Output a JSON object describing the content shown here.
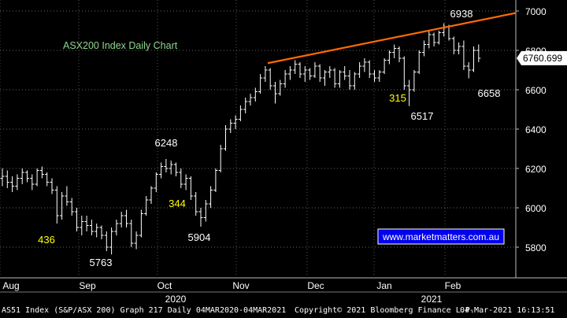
{
  "chart_data": {
    "type": "ohlc",
    "title": "ASX200 Index Daily Chart",
    "y_ticks": [
      5800,
      6000,
      6200,
      6400,
      6600,
      6800,
      7000
    ],
    "ylim": [
      5660,
      7050
    ],
    "x_month_labels": [
      "Aug",
      "Sep",
      "Oct",
      "Nov",
      "Dec",
      "Jan",
      "Feb"
    ],
    "x_year_labels": [
      "2020",
      "2021"
    ],
    "last_price": "6760.699",
    "annotations": [
      {
        "text": "6938",
        "color": "#ffffff"
      },
      {
        "text": "6248",
        "color": "#ffffff"
      },
      {
        "text": "6658",
        "color": "#ffffff"
      },
      {
        "text": "6517",
        "color": "#ffffff"
      },
      {
        "text": "5904",
        "color": "#ffffff"
      },
      {
        "text": "5763",
        "color": "#ffffff"
      },
      {
        "text": "436",
        "color": "#ffff00"
      },
      {
        "text": "344",
        "color": "#ffff00"
      },
      {
        "text": "315",
        "color": "#ffff00"
      }
    ],
    "trendline": {
      "color": "#ff6a00",
      "y_start": 6735,
      "y_end": 6990
    },
    "bars": [
      [
        6150,
        6200,
        6110,
        6160
      ],
      [
        6160,
        6190,
        6100,
        6130
      ],
      [
        6130,
        6160,
        6080,
        6110
      ],
      [
        6110,
        6170,
        6090,
        6150
      ],
      [
        6150,
        6200,
        6120,
        6180
      ],
      [
        6180,
        6190,
        6130,
        6150
      ],
      [
        6150,
        6170,
        6090,
        6120
      ],
      [
        6120,
        6200,
        6110,
        6190
      ],
      [
        6190,
        6210,
        6150,
        6170
      ],
      [
        6170,
        6180,
        6110,
        6130
      ],
      [
        6130,
        6150,
        6070,
        6090
      ],
      [
        6090,
        6110,
        5920,
        5960
      ],
      [
        5960,
        6080,
        5940,
        6060
      ],
      [
        6060,
        6110,
        6010,
        6030
      ],
      [
        6030,
        6050,
        5960,
        5980
      ],
      [
        5980,
        6000,
        5880,
        5900
      ],
      [
        5900,
        5960,
        5860,
        5930
      ],
      [
        5930,
        5960,
        5880,
        5910
      ],
      [
        5910,
        5940,
        5860,
        5880
      ],
      [
        5880,
        5920,
        5850,
        5900
      ],
      [
        5900,
        5910,
        5840,
        5860
      ],
      [
        5860,
        5880,
        5780,
        5800
      ],
      [
        5800,
        5900,
        5763,
        5880
      ],
      [
        5880,
        5940,
        5860,
        5920
      ],
      [
        5920,
        5980,
        5900,
        5960
      ],
      [
        5960,
        5990,
        5900,
        5920
      ],
      [
        5920,
        5940,
        5800,
        5820
      ],
      [
        5820,
        5880,
        5790,
        5860
      ],
      [
        5860,
        5990,
        5850,
        5970
      ],
      [
        5970,
        6060,
        5960,
        6040
      ],
      [
        6040,
        6110,
        6020,
        6100
      ],
      [
        6100,
        6180,
        6080,
        6170
      ],
      [
        6170,
        6230,
        6150,
        6210
      ],
      [
        6210,
        6248,
        6180,
        6200
      ],
      [
        6200,
        6240,
        6170,
        6220
      ],
      [
        6220,
        6230,
        6160,
        6180
      ],
      [
        6180,
        6200,
        6100,
        6120
      ],
      [
        6120,
        6170,
        6090,
        6150
      ],
      [
        6150,
        6160,
        6040,
        6060
      ],
      [
        6060,
        6080,
        5960,
        5980
      ],
      [
        5980,
        6000,
        5904,
        5950
      ],
      [
        5950,
        6040,
        5930,
        6020
      ],
      [
        6020,
        6110,
        6000,
        6090
      ],
      [
        6090,
        6200,
        6080,
        6190
      ],
      [
        6190,
        6320,
        6180,
        6300
      ],
      [
        6300,
        6420,
        6290,
        6400
      ],
      [
        6400,
        6450,
        6380,
        6430
      ],
      [
        6430,
        6470,
        6400,
        6450
      ],
      [
        6450,
        6520,
        6440,
        6500
      ],
      [
        6500,
        6560,
        6480,
        6540
      ],
      [
        6540,
        6580,
        6520,
        6560
      ],
      [
        6560,
        6610,
        6540,
        6590
      ],
      [
        6590,
        6680,
        6580,
        6660
      ],
      [
        6660,
        6720,
        6640,
        6700
      ],
      [
        6700,
        6710,
        6600,
        6620
      ],
      [
        6620,
        6640,
        6530,
        6580
      ],
      [
        6580,
        6650,
        6570,
        6630
      ],
      [
        6630,
        6700,
        6610,
        6680
      ],
      [
        6680,
        6720,
        6650,
        6700
      ],
      [
        6700,
        6750,
        6680,
        6730
      ],
      [
        6730,
        6740,
        6660,
        6680
      ],
      [
        6680,
        6720,
        6640,
        6700
      ],
      [
        6700,
        6710,
        6650,
        6670
      ],
      [
        6670,
        6740,
        6660,
        6720
      ],
      [
        6720,
        6730,
        6640,
        6660
      ],
      [
        6660,
        6700,
        6620,
        6690
      ],
      [
        6690,
        6720,
        6660,
        6700
      ],
      [
        6700,
        6710,
        6610,
        6630
      ],
      [
        6630,
        6700,
        6610,
        6690
      ],
      [
        6690,
        6720,
        6650,
        6670
      ],
      [
        6670,
        6700,
        6600,
        6620
      ],
      [
        6620,
        6690,
        6600,
        6680
      ],
      [
        6680,
        6740,
        6660,
        6720
      ],
      [
        6720,
        6760,
        6690,
        6740
      ],
      [
        6740,
        6750,
        6660,
        6680
      ],
      [
        6680,
        6700,
        6640,
        6660
      ],
      [
        6660,
        6700,
        6640,
        6690
      ],
      [
        6690,
        6760,
        6680,
        6750
      ],
      [
        6750,
        6800,
        6730,
        6790
      ],
      [
        6790,
        6830,
        6760,
        6810
      ],
      [
        6810,
        6820,
        6740,
        6760
      ],
      [
        6760,
        6770,
        6600,
        6620
      ],
      [
        6620,
        6650,
        6517,
        6600
      ],
      [
        6600,
        6700,
        6590,
        6690
      ],
      [
        6690,
        6800,
        6680,
        6790
      ],
      [
        6790,
        6850,
        6770,
        6830
      ],
      [
        6830,
        6900,
        6810,
        6880
      ],
      [
        6880,
        6890,
        6820,
        6840
      ],
      [
        6840,
        6900,
        6830,
        6890
      ],
      [
        6890,
        6938,
        6870,
        6920
      ],
      [
        6920,
        6930,
        6850,
        6860
      ],
      [
        6860,
        6870,
        6780,
        6800
      ],
      [
        6800,
        6840,
        6780,
        6820
      ],
      [
        6820,
        6850,
        6700,
        6720
      ],
      [
        6720,
        6740,
        6658,
        6700
      ],
      [
        6700,
        6820,
        6690,
        6800
      ],
      [
        6800,
        6830,
        6740,
        6760
      ]
    ]
  },
  "watermark": "www.marketmatters.com.au",
  "footer": {
    "left": "AS51 Index (S&P/ASX 200) Graph 217  Daily 04MAR2020-04MAR2021",
    "copyright": "Copyright© 2021 Bloomberg Finance L.P.",
    "timestamp": "04-Mar-2021 16:13:51"
  }
}
